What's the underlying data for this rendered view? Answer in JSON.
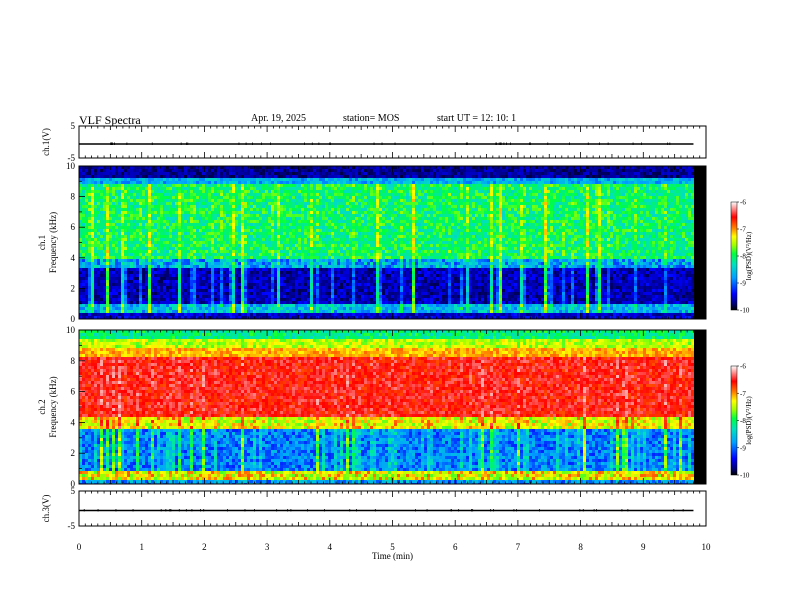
{
  "header": {
    "title": "VLF Spectra",
    "date": "Apr. 19, 2025",
    "station": "station= MOS",
    "start": "start  UT =   12: 10: 1"
  },
  "chart_data": [
    {
      "type": "line",
      "name": "ch1-voltage",
      "ylabel": "ch.1(V)",
      "ylim": [
        -5,
        5
      ],
      "yticks": [
        "5",
        "-5"
      ],
      "xlim": [
        0,
        10
      ],
      "x": [
        0,
        9.8
      ],
      "y": [
        0,
        0
      ]
    },
    {
      "type": "heatmap",
      "name": "ch1-spectrogram",
      "ylabel": "ch.1\nFrequency (kHz)",
      "ylim": [
        0,
        10
      ],
      "yticks": [
        "0",
        "2",
        "4",
        "6",
        "8",
        "10"
      ],
      "xlim": [
        0,
        10
      ],
      "data_end_min": 9.8,
      "colorbar": {
        "label": "log(PSD)(V²/Hz)",
        "range": [
          -10,
          -6
        ],
        "ticks": [
          "-6",
          "-7",
          "-8",
          "-9",
          "-10"
        ]
      }
    },
    {
      "type": "heatmap",
      "name": "ch2-spectrogram",
      "ylabel": "ch.2\nFrequency (kHz)",
      "ylim": [
        0,
        10
      ],
      "yticks": [
        "0",
        "2",
        "4",
        "6",
        "8",
        "10"
      ],
      "xlim": [
        0,
        10
      ],
      "data_end_min": 9.8,
      "colorbar": {
        "label": "log(PSD)(V²/Hz)",
        "range": [
          -10,
          -6
        ],
        "ticks": [
          "-6",
          "-7",
          "-8",
          "-9",
          "-10"
        ]
      }
    },
    {
      "type": "line",
      "name": "ch3-voltage",
      "ylabel": "ch.3(V)",
      "ylim": [
        -5,
        5
      ],
      "yticks": [
        "5",
        "-5"
      ],
      "xlim": [
        0,
        10
      ],
      "x": [
        0,
        9.8
      ],
      "y": [
        0,
        0
      ]
    }
  ],
  "xaxis": {
    "label": "Time (min)",
    "ticks": [
      "0",
      "1",
      "2",
      "3",
      "4",
      "5",
      "6",
      "7",
      "8",
      "9",
      "10"
    ]
  },
  "colors": {
    "colormap": [
      "#000000",
      "#00007a",
      "#0000ff",
      "#00a0ff",
      "#00e0c0",
      "#00ff40",
      "#a0ff00",
      "#ffff00",
      "#ff8000",
      "#ff0000",
      "#ffffff"
    ]
  }
}
